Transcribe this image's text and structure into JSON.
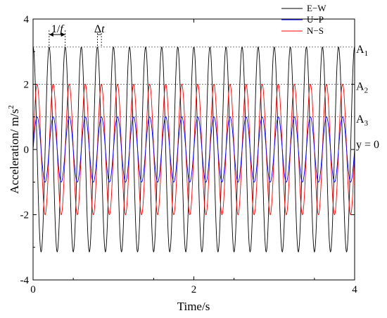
{
  "chart_data": {
    "type": "line",
    "xlabel": "Time/s",
    "ylabel": "Acceleration/ m/s",
    "ylabel_superscript": "2",
    "xlim": [
      0,
      4
    ],
    "ylim": [
      -4,
      4
    ],
    "x_ticks": [
      0,
      2,
      4
    ],
    "x_tick_labels": [
      "0",
      "2",
      "4"
    ],
    "y_ticks": [
      -4,
      -2,
      0,
      2,
      4
    ],
    "y_tick_labels": [
      "-4",
      "-2",
      "0",
      "2",
      "4"
    ],
    "grid": false,
    "legend_position": "top-right",
    "series": [
      {
        "name": "E−W",
        "amplitude": 3.14,
        "frequency_hz": 5,
        "phase_rad": 1.5708,
        "color": "#000000"
      },
      {
        "name": "U−P",
        "amplitude": 1.0,
        "frequency_hz": 5,
        "phase_rad": 0.0,
        "color": "#0000ff"
      },
      {
        "name": "N−S",
        "amplitude": 2.0,
        "frequency_hz": 5,
        "phase_rad": 0.0,
        "color": "#ff0000"
      }
    ],
    "reference_lines": [
      {
        "y": 3.14,
        "label": "A",
        "subscript": "1"
      },
      {
        "y": 2.0,
        "label": "A",
        "subscript": "2"
      },
      {
        "y": 1.0,
        "label": "A",
        "subscript": "3"
      },
      {
        "y": 0,
        "label": "y = 0",
        "subscript": ""
      }
    ],
    "annotations": {
      "period_label": "1/",
      "period_label_italic": "f",
      "period_x": [
        0.2,
        0.4
      ],
      "delta_label": "Δ",
      "delta_label_italic": "t",
      "delta_x": [
        0.8,
        0.85
      ]
    }
  }
}
